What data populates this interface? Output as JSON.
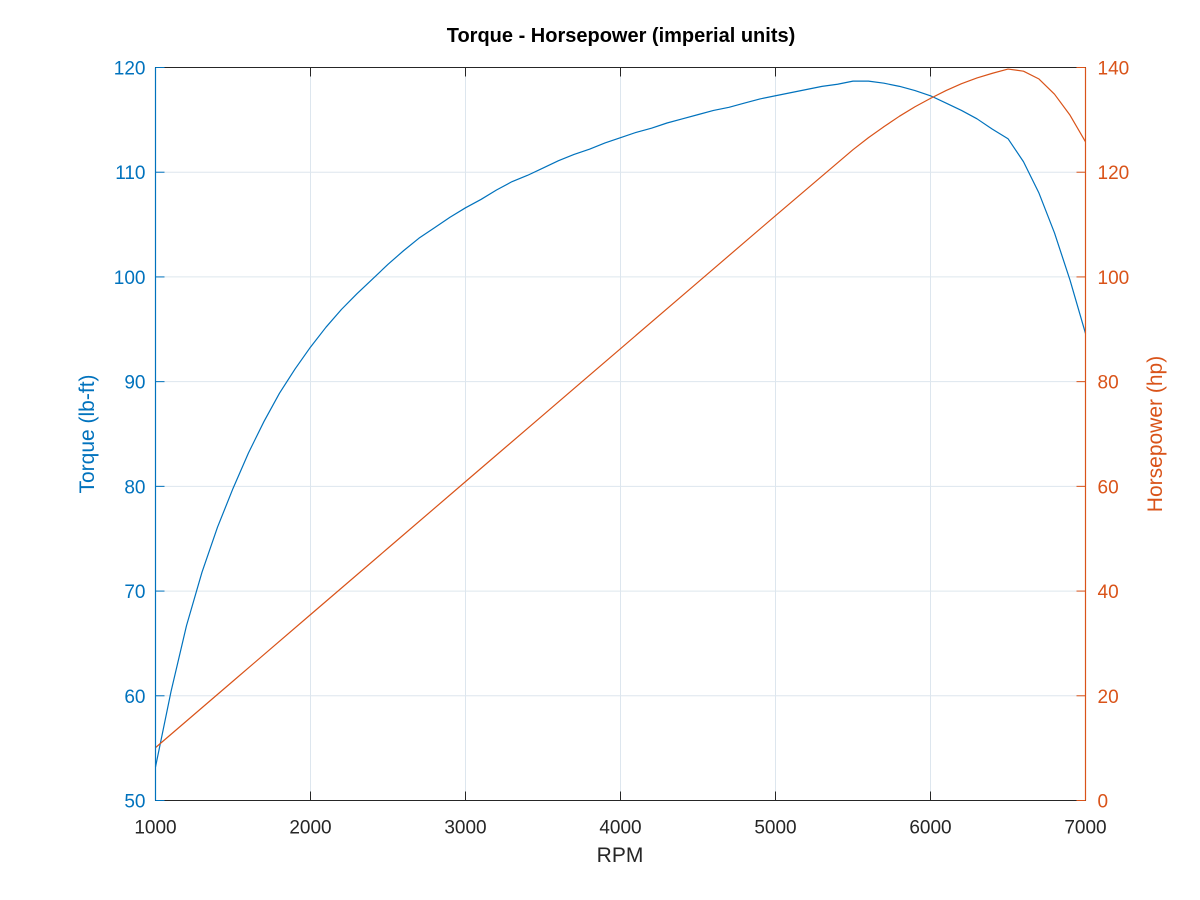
{
  "chart_data": {
    "type": "line",
    "title": "Torque - Horsepower (imperial units)",
    "xlabel": "RPM",
    "xlim": [
      1000,
      7000
    ],
    "x_ticks": [
      1000,
      2000,
      3000,
      4000,
      5000,
      6000,
      7000
    ],
    "grid": true,
    "axes": {
      "left": {
        "label": "Torque (lb-ft)",
        "ylim": [
          50,
          120
        ],
        "ticks": [
          50,
          60,
          70,
          80,
          90,
          100,
          110,
          120
        ],
        "color": "#0072BD"
      },
      "right": {
        "label": "Horsepower (hp)",
        "ylim": [
          0,
          140
        ],
        "ticks": [
          0,
          20,
          40,
          60,
          80,
          100,
          120,
          140
        ],
        "color": "#D95319"
      }
    },
    "series": [
      {
        "axis": "left",
        "color": "#0072BD",
        "x": [
          1000,
          1100,
          1200,
          1300,
          1400,
          1500,
          1600,
          1700,
          1800,
          1900,
          2000,
          2100,
          2200,
          2300,
          2400,
          2500,
          2600,
          2700,
          2800,
          2900,
          3000,
          3100,
          3200,
          3300,
          3400,
          3500,
          3600,
          3700,
          3800,
          3900,
          4000,
          4100,
          4200,
          4300,
          4400,
          4500,
          4600,
          4700,
          4800,
          4900,
          5000,
          5100,
          5200,
          5300,
          5400,
          5500,
          5600,
          5700,
          5800,
          5900,
          6000,
          6100,
          6200,
          6300,
          6400,
          6500,
          6600,
          6700,
          6800,
          6900,
          7000
        ],
        "y": [
          53.2,
          60.4,
          66.7,
          71.8,
          76.1,
          79.8,
          83.2,
          86.2,
          88.9,
          91.2,
          93.3,
          95.2,
          96.9,
          98.4,
          99.8,
          101.2,
          102.5,
          103.7,
          104.7,
          105.7,
          106.6,
          107.4,
          108.3,
          109.1,
          109.7,
          110.4,
          111.1,
          111.7,
          112.2,
          112.8,
          113.3,
          113.8,
          114.2,
          114.7,
          115.1,
          115.5,
          115.9,
          116.2,
          116.6,
          117.0,
          117.3,
          117.6,
          117.9,
          118.2,
          118.4,
          118.7,
          118.7,
          118.5,
          118.2,
          117.8,
          117.3,
          116.6,
          115.9,
          115.1,
          114.1,
          113.2,
          111.0,
          108.0,
          104.2,
          99.7,
          94.6
        ]
      },
      {
        "axis": "right",
        "color": "#D95319",
        "x": [
          1000,
          1500,
          2000,
          2500,
          3000,
          3500,
          4000,
          4500,
          5000,
          5500,
          5600,
          5700,
          5800,
          5900,
          6000,
          6100,
          6200,
          6300,
          6400,
          6500,
          6600,
          6700,
          6800,
          6900,
          7000
        ],
        "y": [
          10.1,
          22.8,
          35.5,
          48.2,
          60.9,
          73.6,
          86.3,
          99.0,
          111.7,
          124.3,
          126.6,
          128.7,
          130.7,
          132.5,
          134.1,
          135.6,
          136.9,
          138.0,
          138.9,
          139.7,
          139.3,
          137.8,
          134.9,
          130.9,
          125.8
        ]
      }
    ]
  }
}
